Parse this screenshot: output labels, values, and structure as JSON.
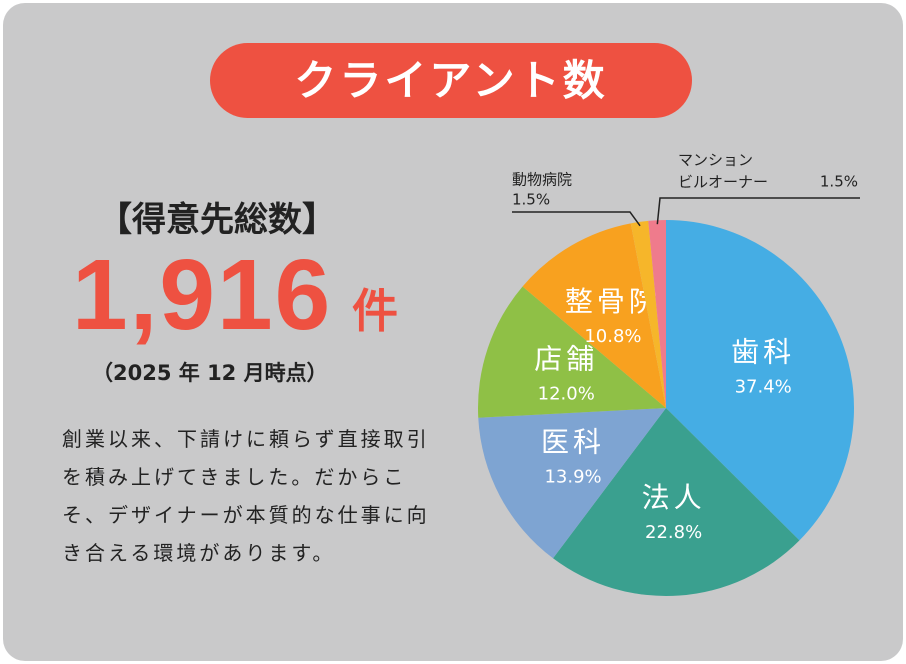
{
  "title": "クライアント数",
  "summary": {
    "heading": "【得意先総数】",
    "count": "1,916",
    "unit": "件",
    "note": "（2025 年 12 月時点）",
    "description": "創業以来、下請けに頼らず直接取引を積み上げてきました。だからこそ、デザイナーが本質的な仕事に向き合える環境があります。"
  },
  "chart_data": {
    "type": "pie",
    "categories": [
      "歯科",
      "法人",
      "医科",
      "店舗",
      "整骨院",
      "動物病院",
      "マンション\nビルオーナー"
    ],
    "values": [
      37.4,
      22.8,
      13.9,
      12.0,
      10.8,
      1.5,
      1.5
    ],
    "value_labels": [
      "37.4%",
      "22.8%",
      "13.9%",
      "12.0%",
      "10.8%",
      "1.5%",
      "1.5%"
    ],
    "colors": [
      "#45ade4",
      "#3aa08f",
      "#7ea4d2",
      "#8fc046",
      "#f8a11f",
      "#f6b62a",
      "#ef7b8c"
    ]
  }
}
